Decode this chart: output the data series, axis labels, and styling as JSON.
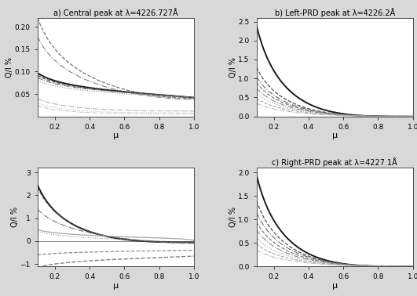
{
  "title_a": "a) Central peak at λ=4226.727Å",
  "title_b": "b) Left-PRD peak at λ=4226.2Å",
  "title_c": "c) Right-PRD peak at λ=4227.1Å",
  "xlabel": "μ",
  "ylabel_QI": "Q/I %",
  "bg_color": "#d8d8d8",
  "panel_bg": "#ffffff",
  "line_dark": "#111111",
  "line_med": "#555555",
  "line_light": "#999999",
  "panels": {
    "a": {
      "ylim": [
        0.0,
        0.22
      ],
      "yticks": [
        0.05,
        0.1,
        0.15,
        0.2
      ],
      "curves": [
        {
          "A": 0.18,
          "B": 1.8,
          "C": 0.04,
          "ls": "--",
          "lw": 0.9,
          "gray": 0.45
        },
        {
          "A": 0.14,
          "B": 1.7,
          "C": 0.038,
          "ls": "-.",
          "lw": 0.8,
          "gray": 0.5
        },
        {
          "A": 0.055,
          "B": 0.9,
          "C": 0.042,
          "ls": "-",
          "lw": 1.4,
          "gray": 0.1
        },
        {
          "A": 0.05,
          "B": 0.85,
          "C": 0.042,
          "ls": "--",
          "lw": 0.9,
          "gray": 0.3
        },
        {
          "A": 0.045,
          "B": 0.8,
          "C": 0.042,
          "ls": "-.",
          "lw": 0.8,
          "gray": 0.45
        },
        {
          "A": 0.04,
          "B": 0.75,
          "C": 0.04,
          "ls": ":",
          "lw": 0.8,
          "gray": 0.55
        },
        {
          "A": 0.028,
          "B": 2.5,
          "C": 0.012,
          "ls": "-.",
          "lw": 0.7,
          "gray": 0.65
        },
        {
          "A": 0.022,
          "B": 3.0,
          "C": 0.008,
          "ls": ":",
          "lw": 0.7,
          "gray": 0.7
        },
        {
          "A": 0.018,
          "B": 3.5,
          "C": 0.006,
          "ls": "-.",
          "lw": 0.6,
          "gray": 0.72
        }
      ]
    },
    "b": {
      "ylim": [
        0.0,
        2.6
      ],
      "yticks": [
        0.0,
        0.5,
        1.0,
        1.5,
        2.0,
        2.5
      ],
      "curves": [
        {
          "A": 2.4,
          "B": 3.5,
          "C": 0.0,
          "ls": "-",
          "lw": 1.4,
          "gray": 0.1
        },
        {
          "A": 1.3,
          "B": 3.2,
          "C": 0.0,
          "ls": "--",
          "lw": 0.9,
          "gray": 0.3
        },
        {
          "A": 1.05,
          "B": 3.0,
          "C": 0.0,
          "ls": "-.",
          "lw": 0.8,
          "gray": 0.4
        },
        {
          "A": 0.9,
          "B": 2.9,
          "C": 0.0,
          "ls": "--",
          "lw": 0.9,
          "gray": 0.5
        },
        {
          "A": 0.75,
          "B": 2.8,
          "C": 0.0,
          "ls": "-.",
          "lw": 0.8,
          "gray": 0.55
        },
        {
          "A": 0.62,
          "B": 2.7,
          "C": 0.0,
          "ls": ":",
          "lw": 0.8,
          "gray": 0.6
        },
        {
          "A": 0.48,
          "B": 2.6,
          "C": 0.0,
          "ls": "--",
          "lw": 0.8,
          "gray": 0.65
        },
        {
          "A": 0.35,
          "B": 2.5,
          "C": 0.0,
          "ls": "-.",
          "lw": 0.7,
          "gray": 0.7
        }
      ]
    },
    "c": {
      "ylim": [
        -1.1,
        3.2
      ],
      "yticks": [
        -1,
        0,
        1,
        2,
        3
      ],
      "curves": [
        {
          "A": 2.5,
          "B": 2.8,
          "C": -0.05,
          "ls": "-",
          "lw": 1.4,
          "gray": 0.1,
          "neg": false
        },
        {
          "A": 2.4,
          "B": 2.6,
          "C": -0.05,
          "ls": "--",
          "lw": 0.9,
          "gray": 0.3,
          "neg": false
        },
        {
          "A": 1.5,
          "B": 1.5,
          "C": -0.1,
          "ls": "-.",
          "lw": 0.8,
          "gray": 0.45,
          "neg": false
        },
        {
          "A": 0.55,
          "B": 0.4,
          "C": -0.12,
          "ls": ":",
          "lw": 0.8,
          "gray": 0.55,
          "neg": false
        },
        {
          "A": 0.5,
          "B": 0.3,
          "C": 0.0,
          "ls": "-",
          "lw": 0.9,
          "gray": 0.65,
          "neg": false
        },
        {
          "A": -0.2,
          "B": 1.0,
          "C": -0.4,
          "ls": "--",
          "lw": 0.9,
          "gray": 0.55,
          "neg": true
        },
        {
          "A": -0.5,
          "B": 0.8,
          "C": -0.65,
          "ls": "--",
          "lw": 1.0,
          "gray": 0.5,
          "neg": true
        }
      ]
    },
    "d": {
      "ylim": [
        0.0,
        2.1
      ],
      "yticks": [
        0.0,
        0.5,
        1.0,
        1.5,
        2.0
      ],
      "curves": [
        {
          "A": 1.95,
          "B": 3.5,
          "C": 0.0,
          "ls": "-",
          "lw": 1.4,
          "gray": 0.1
        },
        {
          "A": 1.4,
          "B": 3.2,
          "C": 0.0,
          "ls": "--",
          "lw": 0.9,
          "gray": 0.3
        },
        {
          "A": 1.15,
          "B": 3.0,
          "C": 0.0,
          "ls": "-.",
          "lw": 0.8,
          "gray": 0.4
        },
        {
          "A": 0.95,
          "B": 2.9,
          "C": 0.0,
          "ls": "--",
          "lw": 0.9,
          "gray": 0.5
        },
        {
          "A": 0.78,
          "B": 2.8,
          "C": 0.0,
          "ls": "-.",
          "lw": 0.8,
          "gray": 0.55
        },
        {
          "A": 0.62,
          "B": 2.7,
          "C": 0.0,
          "ls": ":",
          "lw": 0.8,
          "gray": 0.6
        },
        {
          "A": 0.48,
          "B": 2.6,
          "C": 0.0,
          "ls": "--",
          "lw": 0.8,
          "gray": 0.65
        },
        {
          "A": 0.35,
          "B": 2.5,
          "C": 0.0,
          "ls": "-.",
          "lw": 0.7,
          "gray": 0.7
        }
      ]
    }
  }
}
